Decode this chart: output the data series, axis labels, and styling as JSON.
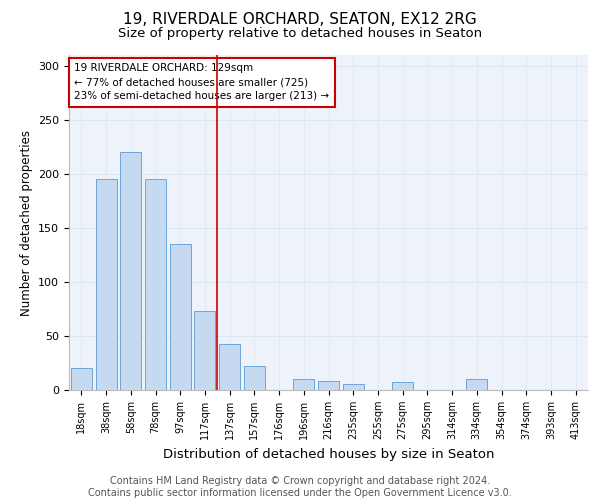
{
  "title_line1": "19, RIVERDALE ORCHARD, SEATON, EX12 2RG",
  "title_line2": "Size of property relative to detached houses in Seaton",
  "xlabel": "Distribution of detached houses by size in Seaton",
  "ylabel": "Number of detached properties",
  "categories": [
    "18sqm",
    "38sqm",
    "58sqm",
    "78sqm",
    "97sqm",
    "117sqm",
    "137sqm",
    "157sqm",
    "176sqm",
    "196sqm",
    "216sqm",
    "235sqm",
    "255sqm",
    "275sqm",
    "295sqm",
    "314sqm",
    "334sqm",
    "354sqm",
    "374sqm",
    "393sqm",
    "413sqm"
  ],
  "values": [
    20,
    195,
    220,
    195,
    135,
    73,
    43,
    22,
    0,
    10,
    8,
    6,
    0,
    7,
    0,
    0,
    10,
    0,
    0,
    0,
    0
  ],
  "bar_color": "#c5d9f0",
  "bar_edge_color": "#5b9bd5",
  "annotation_text": "19 RIVERDALE ORCHARD: 129sqm\n← 77% of detached houses are smaller (725)\n23% of semi-detached houses are larger (213) →",
  "annotation_box_color": "white",
  "annotation_box_edge_color": "#cc0000",
  "vline_x_index": 5.5,
  "vline_color": "#cc0000",
  "ylim": [
    0,
    310
  ],
  "yticks": [
    0,
    50,
    100,
    150,
    200,
    250,
    300
  ],
  "grid_color": "#dce6f1",
  "background_color": "#eef3fb",
  "footer_text": "Contains HM Land Registry data © Crown copyright and database right 2024.\nContains public sector information licensed under the Open Government Licence v3.0.",
  "title_fontsize": 11,
  "subtitle_fontsize": 9.5,
  "xlabel_fontsize": 9.5,
  "ylabel_fontsize": 8.5,
  "tick_fontsize": 7,
  "annot_fontsize": 7.5,
  "footer_fontsize": 7
}
